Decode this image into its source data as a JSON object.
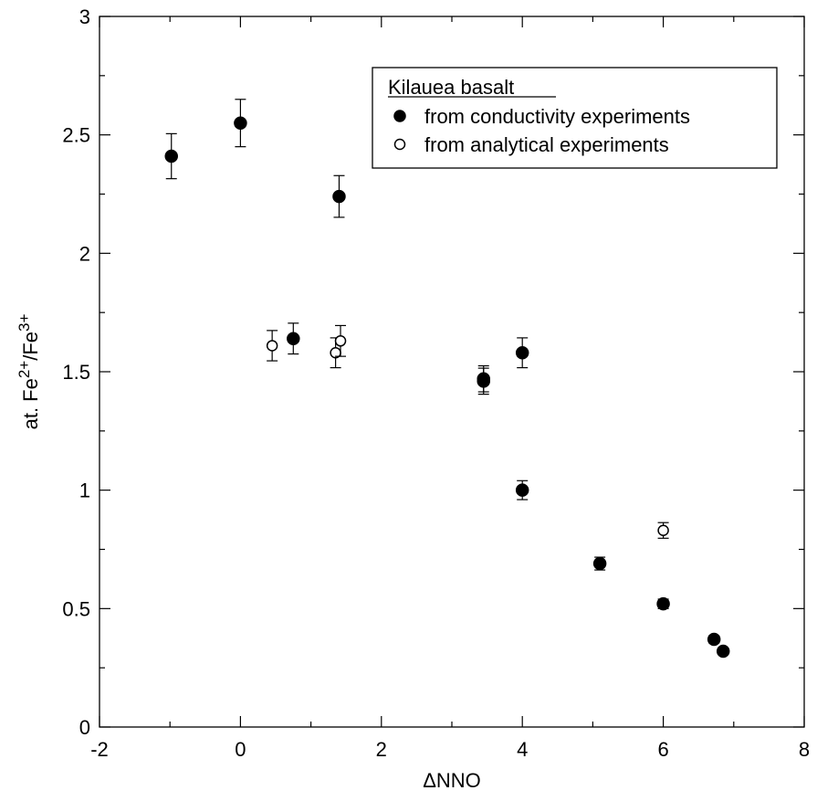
{
  "chart_data": {
    "type": "scatter",
    "xlabel": "ΔNNO",
    "ylabel_parts": [
      "at. Fe",
      "2+",
      "/Fe",
      "3+"
    ],
    "xlim": [
      -2,
      8
    ],
    "ylim": [
      0,
      3
    ],
    "x_ticks": [
      -2,
      0,
      2,
      4,
      6,
      8
    ],
    "x_tick_labels": [
      "-2",
      "0",
      "2",
      "4",
      "6",
      "8"
    ],
    "y_ticks": [
      0,
      0.5,
      1,
      1.5,
      2,
      2.5,
      3
    ],
    "y_tick_labels": [
      "0",
      "0.5",
      "1",
      "1.5",
      "2",
      "2.5",
      "3"
    ],
    "x_minor_step": 1,
    "y_minor_step": 0.25,
    "grid": false,
    "legend": {
      "title": "Kilauea basalt",
      "position": "top-right",
      "entries": [
        "from conductivity experiments",
        "from analytical experiments"
      ]
    },
    "series": [
      {
        "name": "from conductivity experiments",
        "marker": "filled-circle",
        "points": [
          {
            "x": -0.98,
            "y": 2.41,
            "err": 0.095
          },
          {
            "x": 0.0,
            "y": 2.55,
            "err": 0.1
          },
          {
            "x": 1.4,
            "y": 2.24,
            "err": 0.088
          },
          {
            "x": 0.75,
            "y": 1.64,
            "err": 0.065
          },
          {
            "x": 3.45,
            "y": 1.47,
            "err": 0.055
          },
          {
            "x": 3.45,
            "y": 1.46,
            "err": 0.055
          },
          {
            "x": 4.0,
            "y": 1.58,
            "err": 0.063
          },
          {
            "x": 4.0,
            "y": 1.0,
            "err": 0.04
          },
          {
            "x": 5.1,
            "y": 0.69,
            "err": 0.027
          },
          {
            "x": 6.0,
            "y": 0.52,
            "err": 0.02
          },
          {
            "x": 6.72,
            "y": 0.37,
            "err": 0.015
          },
          {
            "x": 6.85,
            "y": 0.32,
            "err": 0.013
          }
        ]
      },
      {
        "name": "from analytical experiments",
        "marker": "open-circle",
        "points": [
          {
            "x": 0.45,
            "y": 1.61,
            "err": 0.064
          },
          {
            "x": 1.35,
            "y": 1.58,
            "err": 0.063
          },
          {
            "x": 1.42,
            "y": 1.63,
            "err": 0.065
          },
          {
            "x": 6.0,
            "y": 0.83,
            "err": 0.033
          }
        ]
      }
    ]
  }
}
